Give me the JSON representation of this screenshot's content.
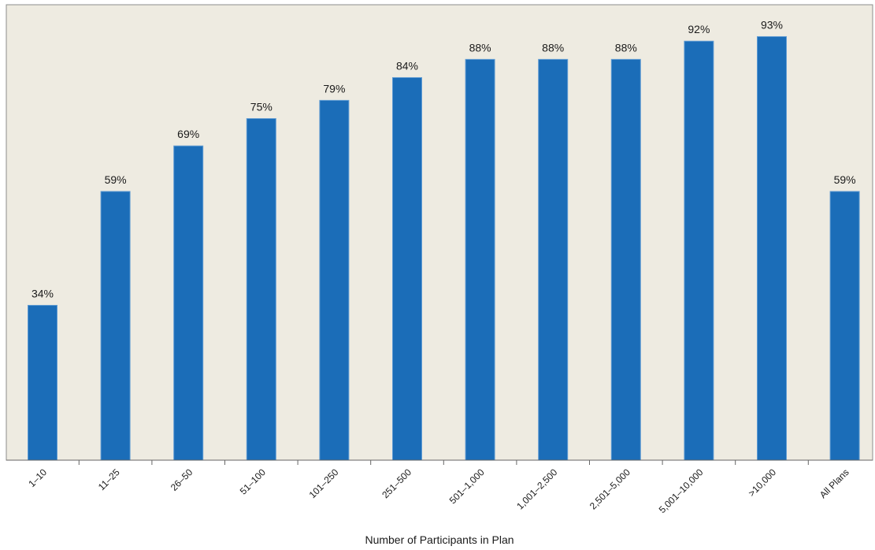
{
  "chart_data": {
    "type": "bar",
    "title": "",
    "xlabel": "Number of Participants in Plan",
    "ylabel": "",
    "categories": [
      "1–10",
      "11–25",
      "26–50",
      "51–100",
      "101–250",
      "251–500",
      "501–1,000",
      "1,001–2,500",
      "2,501–5,000",
      "5,001–10,000",
      ">10,000",
      "All Plans"
    ],
    "values": [
      34,
      59,
      69,
      75,
      79,
      84,
      88,
      88,
      88,
      92,
      93,
      59
    ],
    "value_labels": [
      "34%",
      "59%",
      "69%",
      "75%",
      "79%",
      "84%",
      "88%",
      "88%",
      "88%",
      "92%",
      "93%",
      "59%"
    ],
    "ylim": [
      0,
      100
    ],
    "grid": false,
    "legend": "none",
    "colors": {
      "bar": "#1b6db8",
      "bar_edge": "#5f9bd3",
      "plot_background": "#eeebe1",
      "plot_border": "#8c8c8c"
    }
  }
}
